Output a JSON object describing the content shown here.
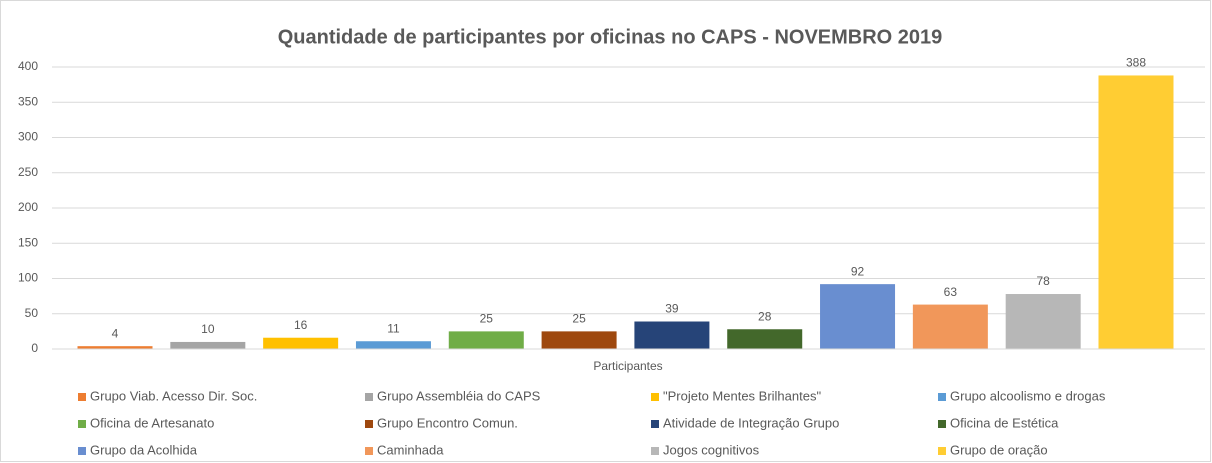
{
  "chart_data": {
    "type": "bar",
    "title": "Quantidade de participantes por oficinas no CAPS - NOVEMBRO 2019",
    "categories": [
      "Participantes"
    ],
    "series": [
      {
        "name": "Grupo Viab. Acesso Dir. Soc.",
        "color": "#ed7d31",
        "values": [
          4
        ]
      },
      {
        "name": "Grupo Assembléia do CAPS",
        "color": "#a5a5a5",
        "values": [
          10
        ]
      },
      {
        "name": "\"Projeto Mentes Brilhantes\"",
        "color": "#ffc000",
        "values": [
          16
        ]
      },
      {
        "name": "Grupo alcoolismo e drogas",
        "color": "#5b9bd5",
        "values": [
          11
        ]
      },
      {
        "name": "Oficina de Artesanato",
        "color": "#70ad47",
        "values": [
          25
        ]
      },
      {
        "name": "Grupo Encontro Comun.",
        "color": "#9e480e",
        "values": [
          25
        ]
      },
      {
        "name": "Atividade de Integração Grupo",
        "color": "#264478",
        "values": [
          39
        ]
      },
      {
        "name": "Oficina de Estética",
        "color": "#43682b",
        "values": [
          28
        ]
      },
      {
        "name": "Grupo da Acolhida",
        "color": "#698ed0",
        "values": [
          92
        ]
      },
      {
        "name": "Caminhada",
        "color": "#f1975a",
        "values": [
          63
        ]
      },
      {
        "name": "Jogos cognitivos",
        "color": "#b7b7b7",
        "values": [
          78
        ]
      },
      {
        "name": "Grupo de oração",
        "color": "#ffcd33",
        "values": [
          388
        ]
      }
    ],
    "ylim": [
      0,
      400
    ],
    "yticks": [
      0,
      50,
      100,
      150,
      200,
      250,
      300,
      350,
      400
    ],
    "grid": true
  }
}
